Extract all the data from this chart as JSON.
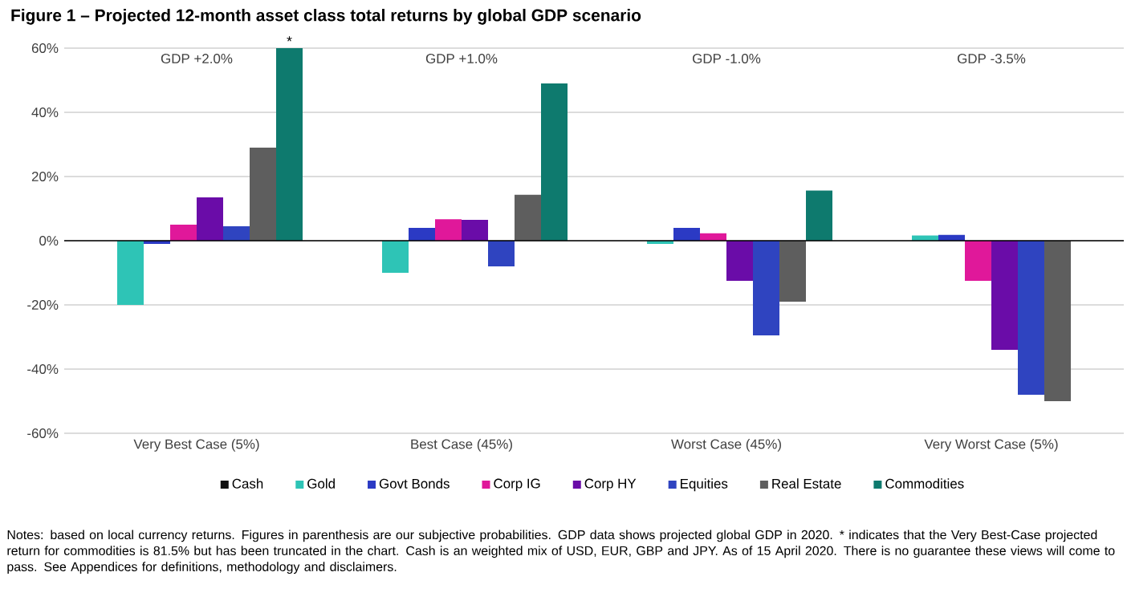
{
  "chart_data": {
    "type": "bar",
    "title": "Figure 1 – Projected 12-month asset class total returns by global GDP scenario",
    "categories": [
      "Very Best Case (5%)",
      "Best Case (45%)",
      "Worst Case (45%)",
      "Very Worst Case (5%)"
    ],
    "series": [
      {
        "name": "Cash",
        "color": "#111111",
        "values": [
          0,
          0,
          0,
          0
        ]
      },
      {
        "name": "Gold",
        "color": "#2ec4b6",
        "values": [
          -20,
          -10,
          -1,
          1.6
        ]
      },
      {
        "name": "Govt Bonds",
        "color": "#2b3ac4",
        "values": [
          -1,
          4,
          4,
          1.8
        ]
      },
      {
        "name": "Corp IG",
        "color": "#e0189a",
        "values": [
          5,
          6.7,
          2.3,
          -12.5
        ]
      },
      {
        "name": "Corp HY",
        "color": "#6a0ca8",
        "values": [
          13.5,
          6.5,
          -12.5,
          -34
        ]
      },
      {
        "name": "Equities",
        "color": "#2f44c0",
        "values": [
          4.5,
          -8,
          -29.5,
          -48
        ]
      },
      {
        "name": "Real Estate",
        "color": "#5e5e5e",
        "values": [
          29,
          14.3,
          -19,
          -50
        ]
      },
      {
        "name": "Commodities",
        "color": "#0e7a6e",
        "values": [
          60,
          49,
          15.6,
          null
        ]
      }
    ],
    "ylim": [
      -60,
      60
    ],
    "yticks": [
      {
        "value": -60,
        "label": "-60%"
      },
      {
        "value": -40,
        "label": "-40%"
      },
      {
        "value": -20,
        "label": "-20%"
      },
      {
        "value": 0,
        "label": "0%"
      },
      {
        "value": 20,
        "label": "20%"
      },
      {
        "value": 40,
        "label": "40%"
      },
      {
        "value": 60,
        "label": "60%"
      }
    ],
    "grid": "y",
    "legend": "bottom",
    "annotations": [
      "GDP +2.0%",
      "GDP +1.0%",
      "GDP -1.0%",
      "GDP -3.5%",
      "*",
      "Notes: based on local currency returns. Figures in parenthesis are our subjective probabilities. GDP data shows projected global GDP in 2020. * indicates that the Very Best-Case projected return for commodities is 81.5% but has been truncated in the chart. Cash is an weighted mix of USD, EUR, GBP and JPY. As of 15 April 2020. There is no guarantee these views will come to pass. See Appendices for definitions, methodology and disclaimers."
    ]
  }
}
